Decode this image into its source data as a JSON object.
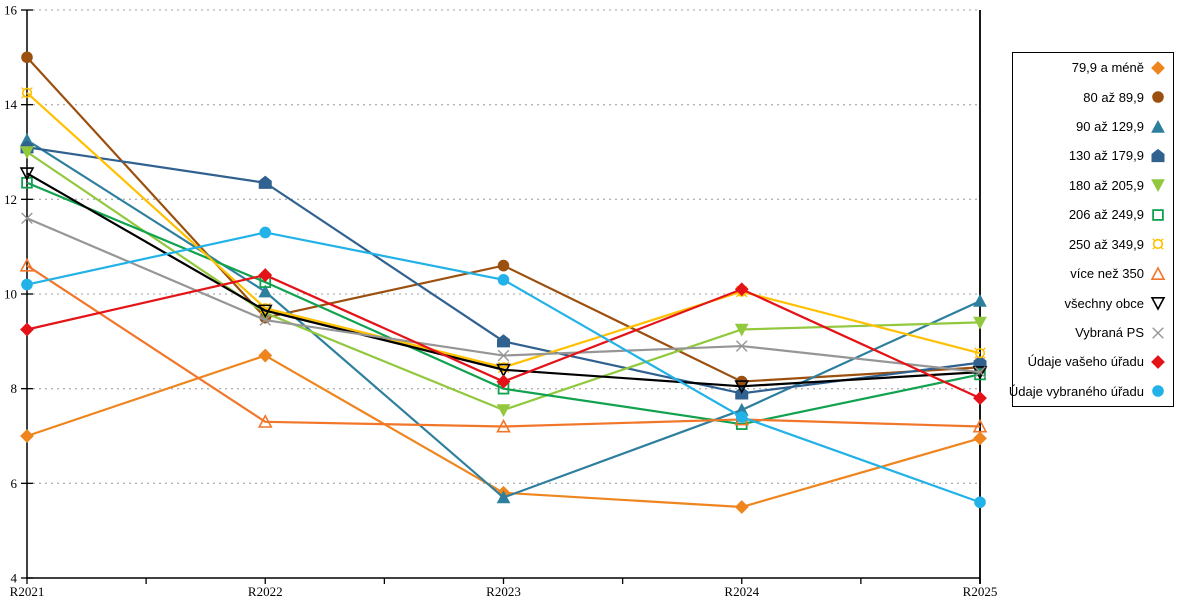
{
  "chart_data": {
    "type": "line",
    "title": "",
    "xlabel": "",
    "ylabel": "",
    "x_categories": [
      "R2021",
      "R2022",
      "R2023",
      "R2024",
      "R2025"
    ],
    "ylim": [
      4,
      16
    ],
    "y_ticks": [
      4,
      6,
      8,
      10,
      12,
      14,
      16
    ],
    "grid": "horizontal-dotted",
    "grid_color": "#b3b3b3",
    "axis_color": "#000000",
    "legend_position": "right-outside-box",
    "series": [
      {
        "name": "79,9 a méně",
        "marker": "diamond",
        "filled": true,
        "color": "#EE851E",
        "values": [
          7.0,
          8.7,
          5.8,
          5.5,
          6.95
        ]
      },
      {
        "name": "80 až 89,9",
        "marker": "circle",
        "filled": true,
        "color": "#9C500F",
        "values": [
          15.0,
          9.5,
          10.6,
          8.15,
          8.45
        ]
      },
      {
        "name": "90 až 129,9",
        "marker": "triangle-up",
        "filled": true,
        "color": "#2E7F9E",
        "values": [
          13.25,
          10.05,
          5.7,
          7.55,
          9.85
        ]
      },
      {
        "name": "130 až 179,9",
        "marker": "pentagon",
        "filled": true,
        "color": "#30618F",
        "values": [
          13.1,
          12.35,
          9.0,
          7.9,
          8.55
        ]
      },
      {
        "name": "180 až 205,9",
        "marker": "triangle-down",
        "filled": true,
        "color": "#92C83E",
        "values": [
          13.0,
          9.6,
          7.55,
          9.25,
          9.4
        ]
      },
      {
        "name": "206 až 249,9",
        "marker": "square",
        "filled": false,
        "color": "#10A24E",
        "values": [
          12.35,
          10.25,
          8.0,
          7.25,
          8.3
        ]
      },
      {
        "name": "250 až 349,9",
        "marker": "sun-circle",
        "filled": false,
        "color": "#FFC000",
        "values": [
          14.25,
          9.7,
          8.45,
          10.05,
          8.75
        ]
      },
      {
        "name": "více než 350",
        "marker": "triangle-up",
        "filled": false,
        "color": "#F2762A",
        "values": [
          10.6,
          7.3,
          7.2,
          7.35,
          7.2
        ]
      },
      {
        "name": "všechny obce",
        "marker": "triangle-down",
        "filled": false,
        "color": "#000000",
        "values": [
          12.55,
          9.65,
          8.4,
          8.05,
          8.35
        ]
      },
      {
        "name": "Vybraná PS",
        "marker": "x",
        "filled": false,
        "color": "#969696",
        "values": [
          11.6,
          9.45,
          8.7,
          8.9,
          8.35
        ]
      },
      {
        "name": "Údaje vašeho úřadu",
        "marker": "diamond",
        "filled": true,
        "color": "#E41318",
        "values": [
          9.25,
          10.4,
          8.15,
          10.1,
          7.8
        ]
      },
      {
        "name": "Údaje vybraného úřadu",
        "marker": "circle",
        "filled": true,
        "color": "#22B2E8",
        "values": [
          10.2,
          11.3,
          10.3,
          7.4,
          5.6
        ]
      }
    ]
  }
}
